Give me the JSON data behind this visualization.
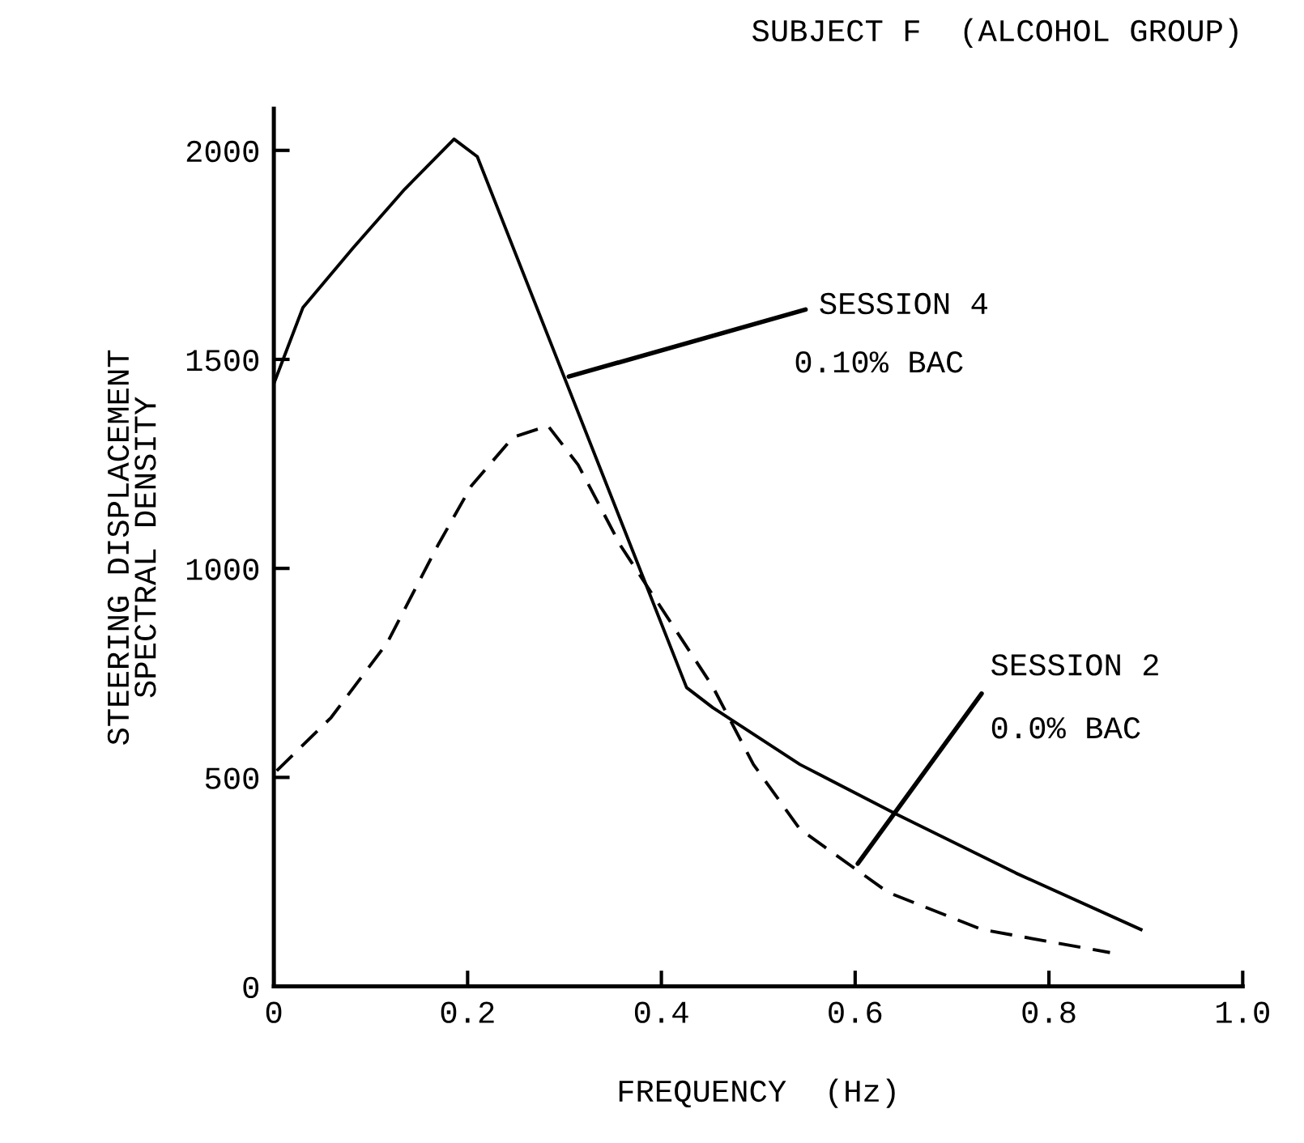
{
  "chart_data": {
    "type": "line",
    "title": "SUBJECT F  (ALCOHOL GROUP)",
    "xlabel": "FREQUENCY  (Hz)",
    "ylabel": "STEERING DISPLACEMENT\nSPECTRAL DENSITY",
    "xlim": [
      0,
      1.0
    ],
    "xticks": [
      0,
      0.2,
      0.4,
      0.6,
      0.8,
      {
        "value": 1.0,
        "label": "1.0"
      }
    ],
    "ylim": [
      0,
      2100
    ],
    "yticks": [
      0,
      500,
      1000,
      1500,
      2000
    ],
    "grid": false,
    "legend": false,
    "series": [
      {
        "color": "#000000",
        "line_style": "solid",
        "x": [
          0,
          0.03,
          0.082,
          0.135,
          0.186,
          0.21,
          0.426,
          0.453,
          0.543,
          0.64,
          0.766,
          0.895
        ],
        "values": [
          1442,
          1624,
          1767,
          1907,
          2027,
          1985,
          715,
          667,
          531,
          415,
          271,
          136
        ]
      },
      {
        "color": "#000000",
        "line_style": "dashed",
        "x": [
          0.003,
          0.059,
          0.117,
          0.169,
          0.204,
          0.247,
          0.283,
          0.314,
          0.358,
          0.453,
          0.495,
          0.543,
          0.634,
          0.731,
          0.863
        ],
        "values": [
          516,
          643,
          822,
          1054,
          1198,
          1314,
          1341,
          1248,
          1054,
          717,
          531,
          376,
          225,
          136,
          81
        ]
      }
    ],
    "annotations": [
      {
        "text": "SESSION 4",
        "x": 0.3,
        "y": 1456
      },
      "0.10% BAC",
      {
        "text": "SESSION 2",
        "x": 0.6,
        "y": 285
      },
      "0.0% BAC"
    ]
  }
}
